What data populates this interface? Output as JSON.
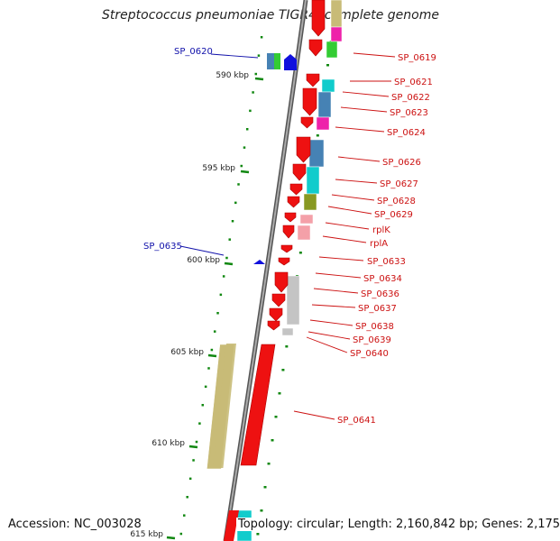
{
  "title": "Streptococcus pneumoniae TIGR4, complete genome",
  "footer": {
    "accession": "Accession: NC_003028",
    "topology": "Topology: circular; Length: 2,160,842 bp; Genes: 2,175"
  },
  "colors": {
    "forward_gene": "#ee1111",
    "reverse_gene": "#1111dd",
    "label_forward": "#cc1111",
    "label_reverse": "#1111aa",
    "tick": "#118811",
    "backbone": "#777777",
    "cog_steelblue": "#4682b4",
    "cog_cyan": "#11cccc",
    "cog_magenta": "#ee22aa",
    "cog_olive": "#889922",
    "cog_khaki": "#c8bb77",
    "cog_pink": "#f4a0a8",
    "cog_grey": "#c4c4c4",
    "cog_green": "#33cc33"
  },
  "scale_labels": [
    "590 kbp",
    "595 kbp",
    "600 kbp",
    "605 kbp",
    "610 kbp",
    "615 kbp"
  ],
  "gene_labels_right": [
    "SP_0619",
    "SP_0621",
    "SP_0622",
    "SP_0623",
    "SP_0624",
    "SP_0626",
    "SP_0627",
    "SP_0628",
    "SP_0629",
    "rplK",
    "rplA",
    "SP_0633",
    "SP_0634",
    "SP_0636",
    "SP_0637",
    "SP_0638",
    "SP_0639",
    "SP_0640",
    "SP_0641"
  ],
  "gene_labels_left": [
    "SP_0620",
    "SP_0635"
  ]
}
